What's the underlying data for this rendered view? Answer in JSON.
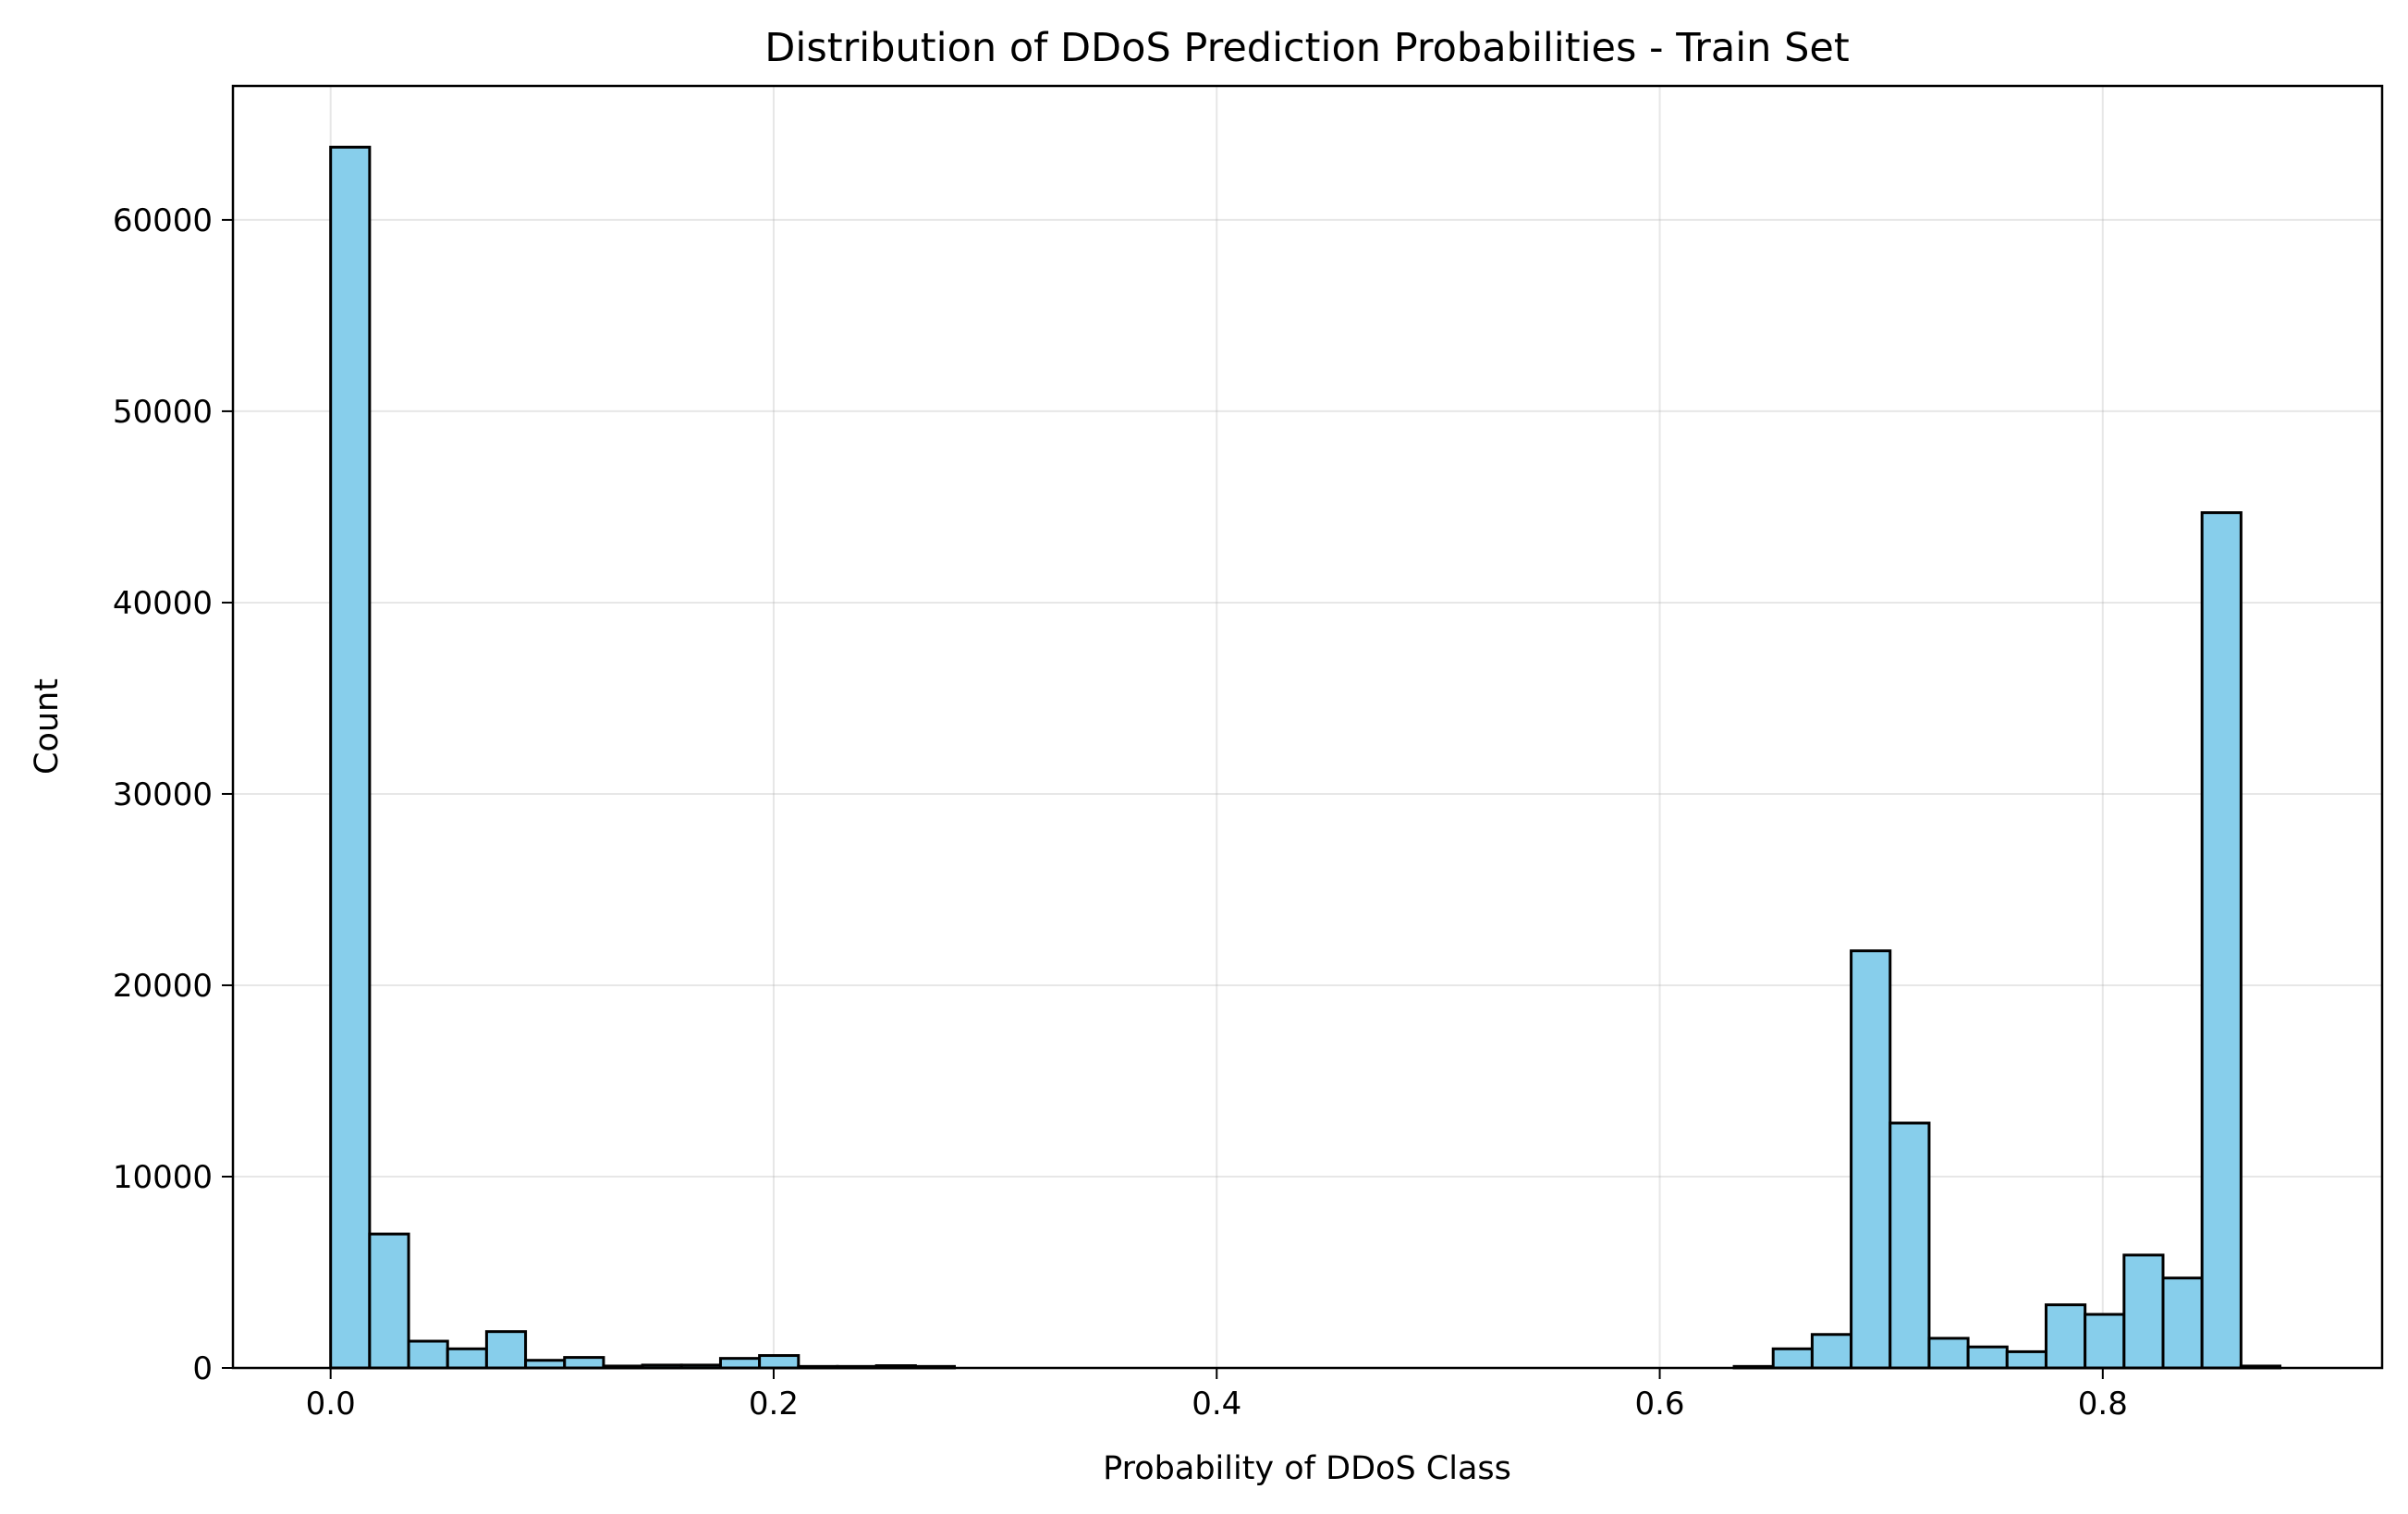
{
  "chart_data": {
    "type": "bar",
    "title": "Distribution of DDoS Prediction Probabilities - Train Set",
    "xlabel": "Probability of DDoS Class",
    "ylabel": "Count",
    "xlim": [
      -0.0441,
      0.9261
    ],
    "ylim": [
      0,
      67000
    ],
    "grid": true,
    "bar_color": "#87ceeb",
    "edge_color": "#000000",
    "bin_start": 0.0,
    "bin_width": 0.0176,
    "values": [
      63800,
      7000,
      1400,
      1000,
      1900,
      400,
      550,
      100,
      150,
      150,
      500,
      650,
      80,
      80,
      120,
      80,
      0,
      0,
      0,
      0,
      0,
      0,
      0,
      0,
      0,
      0,
      0,
      0,
      0,
      0,
      0,
      0,
      0,
      0,
      0,
      0,
      80,
      1000,
      1750,
      21800,
      12800,
      1550,
      1100,
      850,
      3300,
      2800,
      5900,
      4700,
      44700,
      100
    ],
    "x_ticks": [
      0.0,
      0.2,
      0.4,
      0.6,
      0.8
    ],
    "x_tick_labels": [
      "0.0",
      "0.2",
      "0.4",
      "0.6",
      "0.8"
    ],
    "y_ticks": [
      0,
      10000,
      20000,
      30000,
      40000,
      50000,
      60000
    ],
    "y_tick_labels": [
      "0",
      "10000",
      "20000",
      "30000",
      "40000",
      "50000",
      "60000"
    ]
  }
}
